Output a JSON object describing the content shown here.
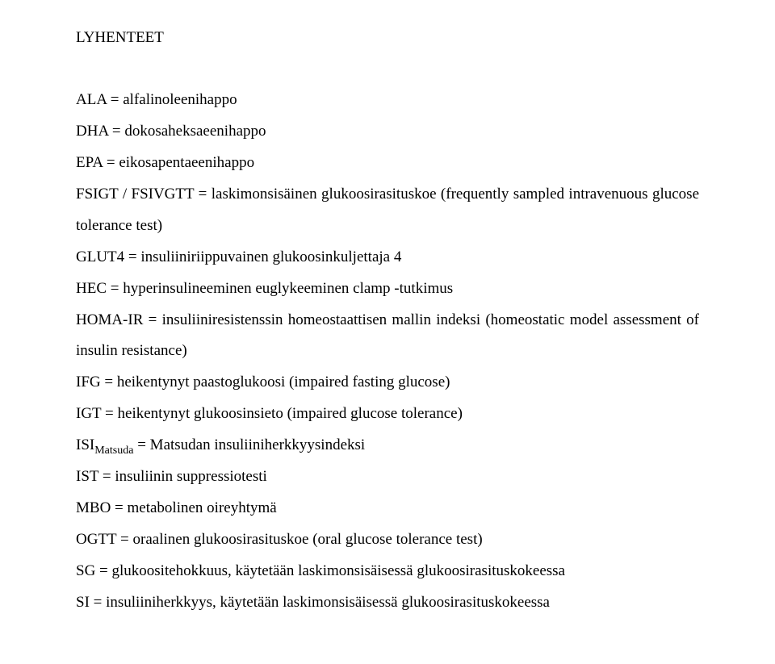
{
  "heading": "LYHENTEET",
  "entries": {
    "e0": "ALA = alfalinoleenihappo",
    "e1": "DHA = dokosaheksaeenihappo",
    "e2": "EPA = eikosapentaeenihappo",
    "e3": "FSIGT / FSIVGTT = laskimonsisäinen glukoosirasituskoe (frequently sampled intravenuous glucose tolerance test)",
    "e4": "GLUT4 = insuliiniriippuvainen glukoosinkuljettaja 4",
    "e5": "HEC = hyperinsulineeminen euglykeeminen clamp -tutkimus",
    "e6": "HOMA-IR = insuliiniresistenssin homeostaattisen mallin indeksi (homeostatic model assessment of insulin resistance)",
    "e7": "IFG = heikentynyt paastoglukoosi (impaired fasting glucose)",
    "e8": "IGT = heikentynyt glukoosinsieto (impaired glucose tolerance)",
    "e9_pre": "ISI",
    "e9_sub": "Matsuda",
    "e9_post": " = Matsudan insuliiniherkkyysindeksi",
    "e10": "IST = insuliinin suppressiotesti",
    "e11": "MBO = metabolinen oireyhtymä",
    "e12": "OGTT = oraalinen glukoosirasituskoe (oral glucose tolerance test)",
    "e13": "SG = glukoositehokkuus, käytetään laskimonsisäisessä glukoosirasituskokeessa",
    "e14": "SI = insuliiniherkkyys, käytetään laskimonsisäisessä glukoosirasituskokeessa"
  }
}
